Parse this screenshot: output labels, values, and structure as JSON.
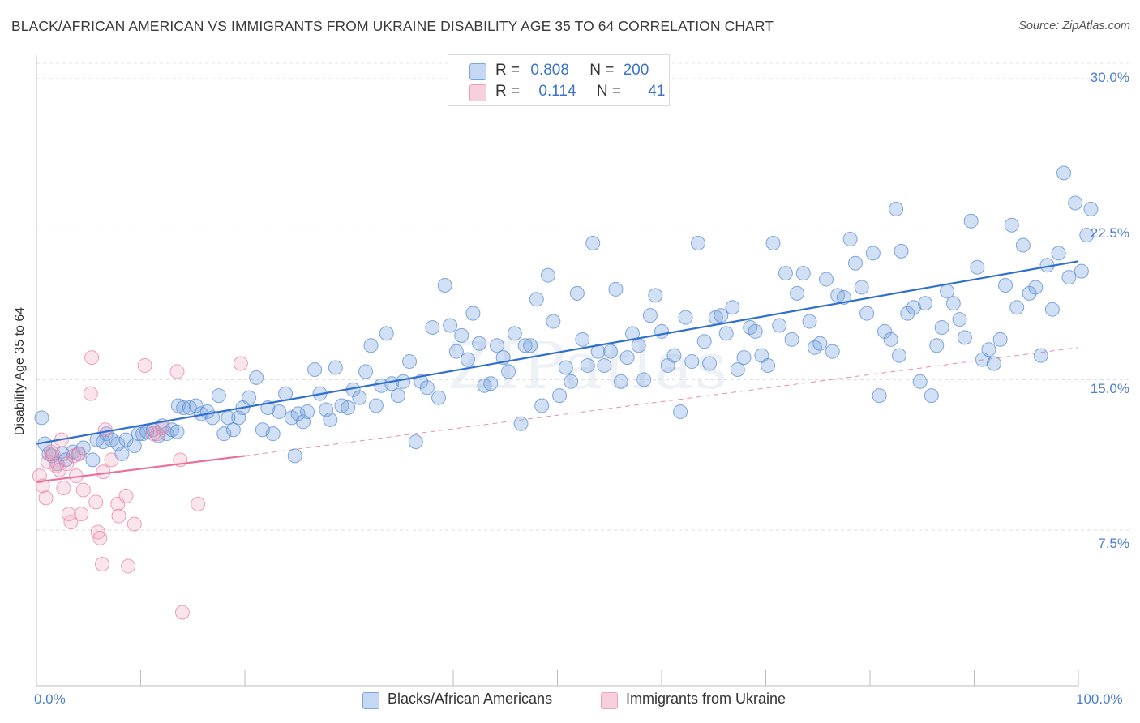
{
  "title": "BLACK/AFRICAN AMERICAN VS IMMIGRANTS FROM UKRAINE DISABILITY AGE 35 TO 64 CORRELATION CHART",
  "source": "Source: ZipAtlas.com",
  "watermark": "ZIPatlas",
  "legend_top": {
    "row1": {
      "r_label": "R =",
      "r_value": "0.808",
      "n_label": "N =",
      "n_value": "200"
    },
    "row2": {
      "r_label": "R =",
      "r_value": "0.114",
      "n_label": "N =",
      "n_value": "41"
    }
  },
  "legend_bottom": {
    "series1": "Blacks/African Americans",
    "series2": "Immigrants from Ukraine"
  },
  "colors": {
    "blue": "#7aa6e0",
    "blue_line": "#2f6fcf",
    "pink": "#f0a0bc",
    "pink_line": "#e8709a",
    "axis_text": "#4a7fd0"
  },
  "chart_data": {
    "type": "scatter",
    "title": "BLACK/AFRICAN AMERICAN VS IMMIGRANTS FROM UKRAINE DISABILITY AGE 35 TO 64 CORRELATION CHART",
    "xlabel": "",
    "ylabel": "Disability Age 35 to 64",
    "xlim": [
      0,
      100
    ],
    "ylim": [
      0,
      32
    ],
    "x_tick_labels": [
      "0.0%",
      "100.0%"
    ],
    "y_ticks": [
      7.5,
      15.0,
      22.5,
      30.0
    ],
    "y_tick_labels": [
      "7.5%",
      "15.0%",
      "22.5%",
      "30.0%"
    ],
    "grid": true,
    "series": [
      {
        "name": "Blacks/African Americans",
        "r": 0.808,
        "n": 200,
        "trend": {
          "x": [
            0,
            100
          ],
          "y": [
            11.8,
            20.9
          ]
        },
        "points": [
          [
            0.5,
            13.1
          ],
          [
            0.8,
            11.8
          ],
          [
            1.2,
            11.3
          ],
          [
            1.5,
            11.2
          ],
          [
            2,
            10.8
          ],
          [
            2.5,
            11.3
          ],
          [
            2.8,
            11.0
          ],
          [
            3.5,
            11.4
          ],
          [
            4,
            11.3
          ],
          [
            4.5,
            11.6
          ],
          [
            5.4,
            11.0
          ],
          [
            5.8,
            12.0
          ],
          [
            6.4,
            11.9
          ],
          [
            6.7,
            12.3
          ],
          [
            7.2,
            12.0
          ],
          [
            7.8,
            11.8
          ],
          [
            8.2,
            11.3
          ],
          [
            8.6,
            12.0
          ],
          [
            9.4,
            11.7
          ],
          [
            9.8,
            12.3
          ],
          [
            10.2,
            12.3
          ],
          [
            10.6,
            12.4
          ],
          [
            11.2,
            12.5
          ],
          [
            11.7,
            12.2
          ],
          [
            12.1,
            12.7
          ],
          [
            12.5,
            12.3
          ],
          [
            13.0,
            12.5
          ],
          [
            13.5,
            12.4
          ],
          [
            13.6,
            13.7
          ],
          [
            14.1,
            13.6
          ],
          [
            14.7,
            13.6
          ],
          [
            15.3,
            13.7
          ],
          [
            15.8,
            13.3
          ],
          [
            16.4,
            13.4
          ],
          [
            16.9,
            13.1
          ],
          [
            17.5,
            14.2
          ],
          [
            18.0,
            12.3
          ],
          [
            18.4,
            13.1
          ],
          [
            18.9,
            12.5
          ],
          [
            19.4,
            13.1
          ],
          [
            19.8,
            13.6
          ],
          [
            20.4,
            14.1
          ],
          [
            21.1,
            15.1
          ],
          [
            21.7,
            12.5
          ],
          [
            22.2,
            13.6
          ],
          [
            22.7,
            12.3
          ],
          [
            23.3,
            13.4
          ],
          [
            23.9,
            14.3
          ],
          [
            24.5,
            13.1
          ],
          [
            25.1,
            13.3
          ],
          [
            24.8,
            11.2
          ],
          [
            25.6,
            12.9
          ],
          [
            26.0,
            13.4
          ],
          [
            26.7,
            15.5
          ],
          [
            27.2,
            14.3
          ],
          [
            27.8,
            13.5
          ],
          [
            28.2,
            13.0
          ],
          [
            28.7,
            15.6
          ],
          [
            29.3,
            13.7
          ],
          [
            29.9,
            13.6
          ],
          [
            30.4,
            14.5
          ],
          [
            31.0,
            14.1
          ],
          [
            31.6,
            15.4
          ],
          [
            32.1,
            16.7
          ],
          [
            32.6,
            13.7
          ],
          [
            33.1,
            14.7
          ],
          [
            33.6,
            17.3
          ],
          [
            34.1,
            14.8
          ],
          [
            34.7,
            14.2
          ],
          [
            35.2,
            14.9
          ],
          [
            35.8,
            15.9
          ],
          [
            36.4,
            11.9
          ],
          [
            36.9,
            14.9
          ],
          [
            37.5,
            14.6
          ],
          [
            38.0,
            17.6
          ],
          [
            38.6,
            14.1
          ],
          [
            39.2,
            19.7
          ],
          [
            39.7,
            17.7
          ],
          [
            40.3,
            16.4
          ],
          [
            40.8,
            17.2
          ],
          [
            41.4,
            16.0
          ],
          [
            41.9,
            18.3
          ],
          [
            42.5,
            16.8
          ],
          [
            43.0,
            14.7
          ],
          [
            43.6,
            14.8
          ],
          [
            44.2,
            16.7
          ],
          [
            44.8,
            16.1
          ],
          [
            45.3,
            15.4
          ],
          [
            45.9,
            17.3
          ],
          [
            46.5,
            12.8
          ],
          [
            46.9,
            16.7
          ],
          [
            47.4,
            16.7
          ],
          [
            48.0,
            19.0
          ],
          [
            48.5,
            13.7
          ],
          [
            49.1,
            20.2
          ],
          [
            49.6,
            17.9
          ],
          [
            50.2,
            14.2
          ],
          [
            50.8,
            15.6
          ],
          [
            51.3,
            14.9
          ],
          [
            51.9,
            19.3
          ],
          [
            52.4,
            17.0
          ],
          [
            52.9,
            15.7
          ],
          [
            53.4,
            21.8
          ],
          [
            53.9,
            16.4
          ],
          [
            54.5,
            15.7
          ],
          [
            55.1,
            16.4
          ],
          [
            55.6,
            19.5
          ],
          [
            56.1,
            14.9
          ],
          [
            56.7,
            16.1
          ],
          [
            57.2,
            17.3
          ],
          [
            57.8,
            16.7
          ],
          [
            58.3,
            15.0
          ],
          [
            58.9,
            18.2
          ],
          [
            59.4,
            19.2
          ],
          [
            60.0,
            17.4
          ],
          [
            60.6,
            15.7
          ],
          [
            61.2,
            16.2
          ],
          [
            61.8,
            13.4
          ],
          [
            62.3,
            18.1
          ],
          [
            62.9,
            15.9
          ],
          [
            63.5,
            21.8
          ],
          [
            64.1,
            16.9
          ],
          [
            64.6,
            15.8
          ],
          [
            65.2,
            18.1
          ],
          [
            65.7,
            18.2
          ],
          [
            66.2,
            17.3
          ],
          [
            66.8,
            18.6
          ],
          [
            67.3,
            15.5
          ],
          [
            67.9,
            16.1
          ],
          [
            68.5,
            17.6
          ],
          [
            69.0,
            17.4
          ],
          [
            69.6,
            16.2
          ],
          [
            70.2,
            15.7
          ],
          [
            70.7,
            21.8
          ],
          [
            71.3,
            17.7
          ],
          [
            71.9,
            20.3
          ],
          [
            72.5,
            17.0
          ],
          [
            73.0,
            19.3
          ],
          [
            73.6,
            20.3
          ],
          [
            74.2,
            17.9
          ],
          [
            74.7,
            16.6
          ],
          [
            75.2,
            16.8
          ],
          [
            75.8,
            20.0
          ],
          [
            76.4,
            16.4
          ],
          [
            76.9,
            19.2
          ],
          [
            77.5,
            19.1
          ],
          [
            78.1,
            22.0
          ],
          [
            78.6,
            20.8
          ],
          [
            79.2,
            19.6
          ],
          [
            79.7,
            18.3
          ],
          [
            80.3,
            21.3
          ],
          [
            80.9,
            14.2
          ],
          [
            81.4,
            17.4
          ],
          [
            82.0,
            17.0
          ],
          [
            82.5,
            23.5
          ],
          [
            83.0,
            21.4
          ],
          [
            82.8,
            16.2
          ],
          [
            83.6,
            18.3
          ],
          [
            84.2,
            18.6
          ],
          [
            84.8,
            14.9
          ],
          [
            85.3,
            18.8
          ],
          [
            85.9,
            14.2
          ],
          [
            86.4,
            16.7
          ],
          [
            86.9,
            17.6
          ],
          [
            87.4,
            19.4
          ],
          [
            88.0,
            18.8
          ],
          [
            88.6,
            18.0
          ],
          [
            89.1,
            17.1
          ],
          [
            89.7,
            22.9
          ],
          [
            90.3,
            20.6
          ],
          [
            90.8,
            16.0
          ],
          [
            91.4,
            16.5
          ],
          [
            91.9,
            15.8
          ],
          [
            92.5,
            17.0
          ],
          [
            93.0,
            19.7
          ],
          [
            93.6,
            22.7
          ],
          [
            94.1,
            18.6
          ],
          [
            94.7,
            21.7
          ],
          [
            95.3,
            19.3
          ],
          [
            95.9,
            19.6
          ],
          [
            96.4,
            16.2
          ],
          [
            97.0,
            20.7
          ],
          [
            97.5,
            18.5
          ],
          [
            98.1,
            21.3
          ],
          [
            98.6,
            25.3
          ],
          [
            99.1,
            20.1
          ],
          [
            99.7,
            23.8
          ],
          [
            100.3,
            20.4
          ],
          [
            100.8,
            22.2
          ],
          [
            101.2,
            23.5
          ]
        ]
      },
      {
        "name": "Immigrants from Ukraine",
        "r": 0.114,
        "n": 41,
        "trend": {
          "x": [
            0,
            20
          ],
          "y": [
            9.9,
            11.2
          ]
        },
        "trend_extension": {
          "x": [
            20,
            100
          ],
          "y": [
            11.2,
            16.6
          ]
        },
        "points": [
          [
            0.3,
            10.2
          ],
          [
            0.6,
            9.7
          ],
          [
            0.9,
            9.1
          ],
          [
            1.1,
            10.9
          ],
          [
            1.4,
            11.4
          ],
          [
            1.6,
            11.3
          ],
          [
            1.9,
            10.7
          ],
          [
            2.2,
            10.5
          ],
          [
            2.4,
            12.0
          ],
          [
            2.6,
            9.6
          ],
          [
            2.9,
            10.8
          ],
          [
            3.1,
            8.3
          ],
          [
            3.3,
            7.9
          ],
          [
            3.6,
            11.2
          ],
          [
            3.8,
            10.2
          ],
          [
            4.1,
            11.3
          ],
          [
            4.3,
            8.3
          ],
          [
            4.5,
            9.5
          ],
          [
            5.2,
            14.3
          ],
          [
            5.3,
            16.1
          ],
          [
            5.7,
            8.9
          ],
          [
            5.9,
            7.4
          ],
          [
            6.1,
            7.1
          ],
          [
            6.3,
            5.8
          ],
          [
            6.4,
            10.4
          ],
          [
            6.6,
            12.5
          ],
          [
            7.2,
            11.0
          ],
          [
            7.8,
            8.8
          ],
          [
            7.9,
            8.2
          ],
          [
            8.6,
            9.2
          ],
          [
            8.8,
            5.7
          ],
          [
            9.4,
            7.8
          ],
          [
            10.4,
            15.7
          ],
          [
            11.2,
            12.3
          ],
          [
            11.6,
            12.3
          ],
          [
            12.1,
            12.6
          ],
          [
            13.5,
            15.4
          ],
          [
            13.8,
            11.0
          ],
          [
            14.0,
            3.4
          ],
          [
            15.5,
            8.8
          ],
          [
            19.6,
            15.8
          ]
        ]
      }
    ]
  }
}
